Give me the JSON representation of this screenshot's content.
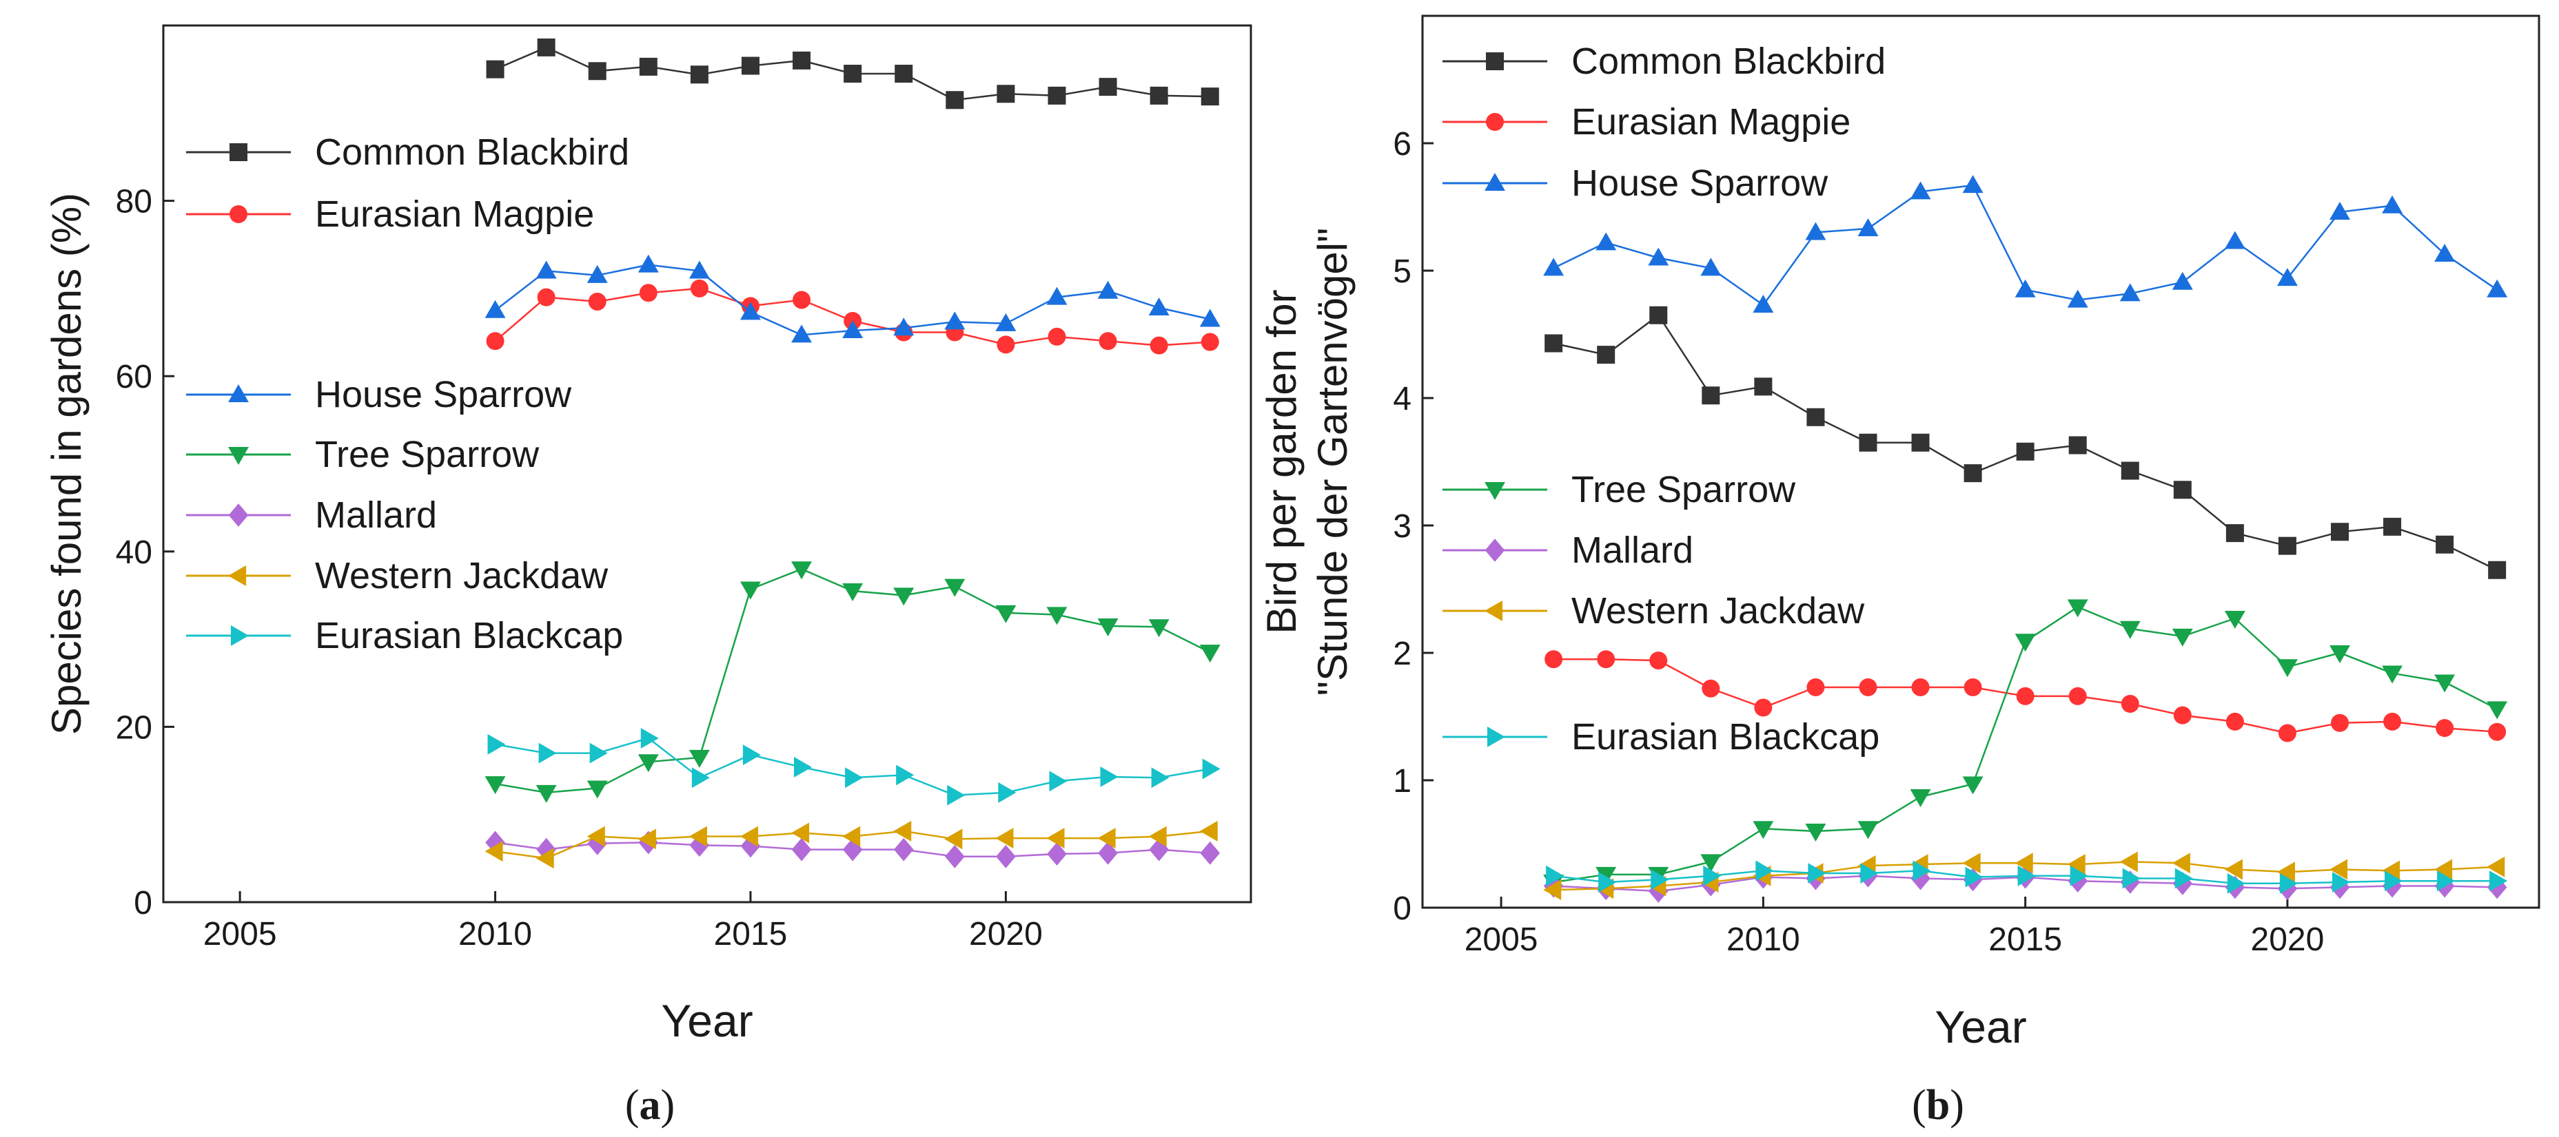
{
  "chart_data": [
    {
      "type": "line",
      "panel_label": "a",
      "xlabel": "Year",
      "ylabel": "Species found in gardens (%)",
      "xlim": [
        2003.5,
        2024.8
      ],
      "ylim": [
        0,
        100
      ],
      "xticks": [
        2005,
        2010,
        2015,
        2020
      ],
      "yticks": [
        0,
        20,
        40,
        60,
        80
      ],
      "legend_groups": [
        {
          "position": "upper-left",
          "series": [
            0,
            1
          ]
        },
        {
          "position": "center-left",
          "series": [
            2,
            3,
            4,
            5,
            6
          ]
        }
      ],
      "series": [
        {
          "name": "Common Blackbird",
          "color": "#333333",
          "marker": "square",
          "x": [
            2010,
            2011,
            2012,
            2013,
            2014,
            2015,
            2016,
            2017,
            2018,
            2019,
            2020,
            2021,
            2022,
            2023,
            2024
          ],
          "values": [
            95.0,
            97.5,
            94.8,
            95.3,
            94.4,
            95.4,
            96.0,
            94.5,
            94.5,
            91.5,
            92.2,
            92.0,
            93.0,
            92.0,
            91.9
          ]
        },
        {
          "name": "Eurasian Magpie",
          "color": "#ff3333",
          "marker": "circle",
          "x": [
            2010,
            2011,
            2012,
            2013,
            2014,
            2015,
            2016,
            2017,
            2018,
            2019,
            2020,
            2021,
            2022,
            2023,
            2024
          ],
          "values": [
            64.0,
            69.0,
            68.5,
            69.5,
            70.0,
            68.0,
            68.7,
            66.3,
            65.0,
            65.0,
            63.6,
            64.5,
            64.0,
            63.5,
            63.9
          ]
        },
        {
          "name": "House Sparrow",
          "color": "#1a6fdf",
          "marker": "triangle-up",
          "x": [
            2010,
            2011,
            2012,
            2013,
            2014,
            2015,
            2016,
            2017,
            2018,
            2019,
            2020,
            2021,
            2022,
            2023,
            2024
          ],
          "values": [
            67.5,
            72.0,
            71.5,
            72.7,
            72.0,
            67.3,
            64.7,
            65.2,
            65.5,
            66.2,
            66.0,
            69.0,
            69.7,
            67.8,
            66.5
          ]
        },
        {
          "name": "Tree Sparrow",
          "color": "#17a34a",
          "marker": "triangle-down",
          "x": [
            2010,
            2011,
            2012,
            2013,
            2014,
            2015,
            2016,
            2017,
            2018,
            2019,
            2020,
            2021,
            2022,
            2023,
            2024
          ],
          "values": [
            13.5,
            12.5,
            13.0,
            16.0,
            16.5,
            35.7,
            38.0,
            35.5,
            35.0,
            36.0,
            33.0,
            32.8,
            31.5,
            31.4,
            28.5
          ]
        },
        {
          "name": "Mallard",
          "color": "#b26ad8",
          "marker": "diamond",
          "x": [
            2010,
            2011,
            2012,
            2013,
            2014,
            2015,
            2016,
            2017,
            2018,
            2019,
            2020,
            2021,
            2022,
            2023,
            2024
          ],
          "values": [
            6.8,
            6.0,
            6.7,
            6.8,
            6.5,
            6.4,
            6.0,
            6.0,
            6.0,
            5.2,
            5.2,
            5.5,
            5.6,
            6.0,
            5.6
          ]
        },
        {
          "name": "Western Jackdaw",
          "color": "#d9a000",
          "marker": "triangle-left",
          "x": [
            2010,
            2011,
            2012,
            2013,
            2014,
            2015,
            2016,
            2017,
            2018,
            2019,
            2020,
            2021,
            2022,
            2023,
            2024
          ],
          "values": [
            5.8,
            5.0,
            7.5,
            7.2,
            7.5,
            7.5,
            7.9,
            7.5,
            8.1,
            7.2,
            7.3,
            7.3,
            7.3,
            7.5,
            8.1
          ]
        },
        {
          "name": "Eurasian Blackcap",
          "color": "#17c1c9",
          "marker": "triangle-right",
          "x": [
            2010,
            2011,
            2012,
            2013,
            2014,
            2015,
            2016,
            2017,
            2018,
            2019,
            2020,
            2021,
            2022,
            2023,
            2024
          ],
          "values": [
            18.0,
            17.0,
            17.0,
            18.7,
            14.2,
            16.8,
            15.4,
            14.2,
            14.5,
            12.2,
            12.5,
            13.8,
            14.3,
            14.2,
            15.2
          ]
        }
      ]
    },
    {
      "type": "line",
      "panel_label": "b",
      "xlabel": "Year",
      "ylabel_lines": [
        "Bird per garden for",
        "\"Stunde der Gartenvögel\""
      ],
      "xlim": [
        2003.5,
        2024.8
      ],
      "ylim": [
        0,
        7
      ],
      "xticks": [
        2005,
        2010,
        2015,
        2020
      ],
      "yticks": [
        0,
        1,
        2,
        3,
        4,
        5,
        6
      ],
      "legend_groups": [
        {
          "position": "upper-left",
          "series": [
            0,
            1,
            2
          ]
        },
        {
          "position": "center-left",
          "series": [
            3,
            4,
            5
          ]
        },
        {
          "position": "lower-left",
          "series": [
            6
          ]
        }
      ],
      "series": [
        {
          "name": "Common Blackbird",
          "color": "#333333",
          "marker": "square",
          "x": [
            2006,
            2007,
            2008,
            2009,
            2010,
            2011,
            2012,
            2013,
            2014,
            2015,
            2016,
            2017,
            2018,
            2019,
            2020,
            2021,
            2022,
            2023,
            2024
          ],
          "values": [
            4.43,
            4.34,
            4.65,
            4.02,
            4.09,
            3.85,
            3.65,
            3.65,
            3.41,
            3.58,
            3.63,
            3.43,
            3.28,
            2.94,
            2.84,
            2.95,
            2.99,
            2.85,
            2.65
          ]
        },
        {
          "name": "Eurasian Magpie",
          "color": "#ff3333",
          "marker": "circle",
          "x": [
            2006,
            2007,
            2008,
            2009,
            2010,
            2011,
            2012,
            2013,
            2014,
            2015,
            2016,
            2017,
            2018,
            2019,
            2020,
            2021,
            2022,
            2023,
            2024
          ],
          "values": [
            1.95,
            1.95,
            1.94,
            1.72,
            1.57,
            1.73,
            1.73,
            1.73,
            1.73,
            1.66,
            1.66,
            1.6,
            1.51,
            1.46,
            1.37,
            1.45,
            1.46,
            1.41,
            1.38
          ]
        },
        {
          "name": "House Sparrow",
          "color": "#1a6fdf",
          "marker": "triangle-up",
          "x": [
            2006,
            2007,
            2008,
            2009,
            2010,
            2011,
            2012,
            2013,
            2014,
            2015,
            2016,
            2017,
            2018,
            2019,
            2020,
            2021,
            2022,
            2023,
            2024
          ],
          "values": [
            5.02,
            5.22,
            5.1,
            5.02,
            4.73,
            5.3,
            5.33,
            5.62,
            5.67,
            4.85,
            4.77,
            4.82,
            4.91,
            5.23,
            4.94,
            5.46,
            5.51,
            5.13,
            4.85
          ]
        },
        {
          "name": "Tree Sparrow",
          "color": "#17a34a",
          "marker": "triangle-down",
          "x": [
            2006,
            2007,
            2008,
            2009,
            2010,
            2011,
            2012,
            2013,
            2014,
            2015,
            2016,
            2017,
            2018,
            2019,
            2020,
            2021,
            2022,
            2023,
            2024
          ],
          "values": [
            0.2,
            0.26,
            0.26,
            0.36,
            0.62,
            0.6,
            0.62,
            0.87,
            0.97,
            2.09,
            2.36,
            2.19,
            2.13,
            2.27,
            1.89,
            2.0,
            1.84,
            1.77,
            1.56
          ]
        },
        {
          "name": "Mallard",
          "color": "#b26ad8",
          "marker": "diamond",
          "x": [
            2006,
            2007,
            2008,
            2009,
            2010,
            2011,
            2012,
            2013,
            2014,
            2015,
            2016,
            2017,
            2018,
            2019,
            2020,
            2021,
            2022,
            2023,
            2024
          ],
          "values": [
            0.17,
            0.15,
            0.13,
            0.18,
            0.24,
            0.23,
            0.25,
            0.23,
            0.22,
            0.24,
            0.21,
            0.2,
            0.19,
            0.16,
            0.15,
            0.16,
            0.17,
            0.17,
            0.16
          ]
        },
        {
          "name": "Western Jackdaw",
          "color": "#d9a000",
          "marker": "triangle-left",
          "x": [
            2006,
            2007,
            2008,
            2009,
            2010,
            2011,
            2012,
            2013,
            2014,
            2015,
            2016,
            2017,
            2018,
            2019,
            2020,
            2021,
            2022,
            2023,
            2024
          ],
          "values": [
            0.14,
            0.15,
            0.17,
            0.2,
            0.25,
            0.27,
            0.33,
            0.34,
            0.35,
            0.35,
            0.34,
            0.36,
            0.35,
            0.3,
            0.28,
            0.3,
            0.29,
            0.3,
            0.32
          ]
        },
        {
          "name": "Eurasian Blackcap",
          "color": "#17c1c9",
          "marker": "triangle-right",
          "x": [
            2006,
            2007,
            2008,
            2009,
            2010,
            2011,
            2012,
            2013,
            2014,
            2015,
            2016,
            2017,
            2018,
            2019,
            2020,
            2021,
            2022,
            2023,
            2024
          ],
          "values": [
            0.25,
            0.2,
            0.22,
            0.25,
            0.29,
            0.27,
            0.27,
            0.29,
            0.24,
            0.25,
            0.25,
            0.23,
            0.23,
            0.19,
            0.19,
            0.2,
            0.21,
            0.21,
            0.21
          ]
        }
      ]
    }
  ]
}
